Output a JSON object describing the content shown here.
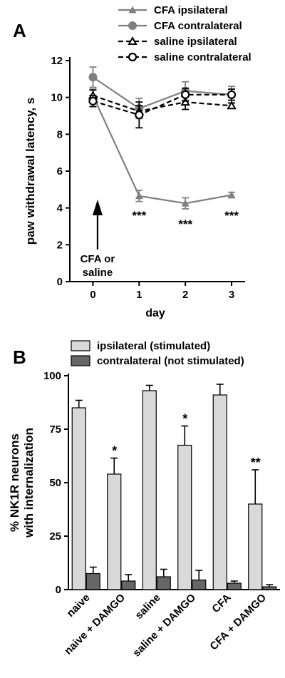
{
  "chart_data": [
    {
      "panel_label": "A",
      "type": "line",
      "xlabel": "day",
      "ylabel": "paw withdrawal latency, s",
      "x": [
        0,
        1,
        2,
        3
      ],
      "xlim": [
        -0.5,
        3.2
      ],
      "ylim": [
        0,
        12
      ],
      "x_ticks": [
        "0",
        "1",
        "2",
        "3"
      ],
      "y_ticks": [
        "0",
        "2",
        "4",
        "6",
        "8",
        "10",
        "12"
      ],
      "grid": false,
      "legend_position": "top",
      "series": [
        {
          "name": "CFA ipsilateral",
          "values": [
            10.1,
            4.65,
            4.25,
            4.7
          ],
          "errors": [
            0.35,
            0.3,
            0.3,
            0.15
          ],
          "color": "#7f7f7f",
          "marker": "filled-triangle",
          "dash": "solid"
        },
        {
          "name": "CFA contralateral",
          "values": [
            11.1,
            9.4,
            10.35,
            10.15
          ],
          "errors": [
            0.55,
            0.55,
            0.5,
            0.45
          ],
          "color": "#7f7f7f",
          "marker": "filled-circle",
          "dash": "solid"
        },
        {
          "name": "saline ipsilateral",
          "values": [
            10.1,
            9.25,
            9.75,
            9.55
          ],
          "errors": [
            0.3,
            0.3,
            0.4,
            0.15
          ],
          "color": "#000000",
          "marker": "open-triangle",
          "dash": "dashed"
        },
        {
          "name": "saline contralateral",
          "values": [
            9.8,
            9.05,
            10.15,
            10.15
          ],
          "errors": [
            0.3,
            0.7,
            0.35,
            0.3
          ],
          "color": "#000000",
          "marker": "open-circle",
          "dash": "dashed"
        }
      ],
      "annotations": [
        {
          "text": "***",
          "x": 1,
          "y": 3.75
        },
        {
          "text": "***",
          "x": 2,
          "y": 3.3
        },
        {
          "text": "***",
          "x": 3,
          "y": 3.75
        }
      ],
      "arrow_label": [
        "CFA or",
        "saline"
      ]
    },
    {
      "panel_label": "B",
      "type": "bar",
      "ylabel": [
        "% NK1R neurons",
        "with internalization"
      ],
      "categories": [
        "naive",
        "naive + DAMGO",
        "saline",
        "saline + DAMGO",
        "CFA",
        "CFA + DAMGO"
      ],
      "ylim": [
        0,
        100
      ],
      "y_ticks": [
        "0",
        "25",
        "50",
        "75",
        "100"
      ],
      "grid": false,
      "legend_position": "top",
      "series": [
        {
          "name": "ipsilateral (stimulated)",
          "values": [
            85,
            54,
            93,
            67.5,
            91,
            40
          ],
          "errors": [
            3.5,
            7.5,
            2.5,
            9,
            5,
            16
          ],
          "color": "#d9d9d9"
        },
        {
          "name": "contralateral (not stimulated)",
          "values": [
            7.5,
            4,
            6,
            4.5,
            3,
            1.3
          ],
          "errors": [
            3,
            3,
            3.5,
            4.5,
            1,
            1
          ],
          "color": "#666666"
        }
      ],
      "significance": [
        "",
        "*",
        "",
        "*",
        "",
        "**"
      ]
    }
  ]
}
